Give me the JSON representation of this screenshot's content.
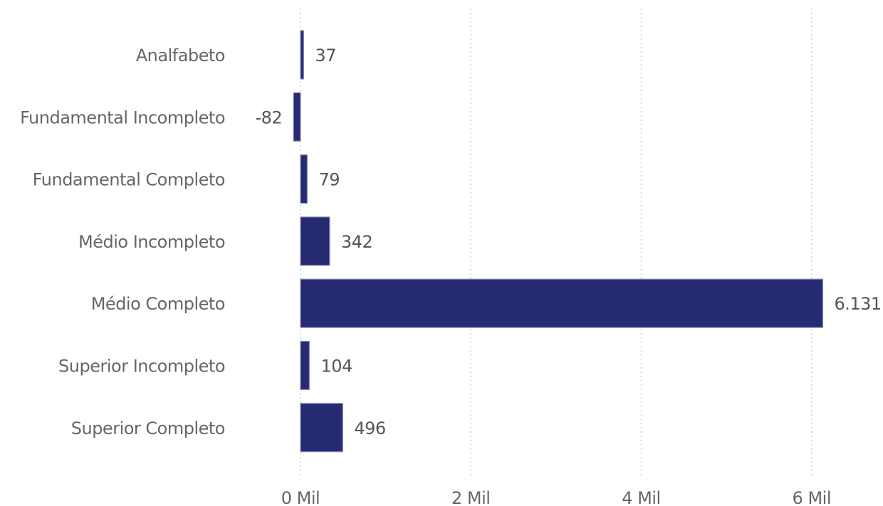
{
  "chart_data": {
    "type": "bar",
    "orientation": "horizontal",
    "categories": [
      "Analfabeto",
      "Fundamental Incompleto",
      "Fundamental Completo",
      "Médio Incompleto",
      "Médio Completo",
      "Superior Incompleto",
      "Superior Completo"
    ],
    "values": [
      37,
      -82,
      79,
      342,
      6131,
      104,
      496
    ],
    "value_labels": [
      "37",
      "-82",
      "79",
      "342",
      "6.131",
      "104",
      "496"
    ],
    "x_ticks": [
      0,
      2000,
      4000,
      6000
    ],
    "x_tick_labels": [
      "0 Mil",
      "2 Mil",
      "4 Mil",
      "6 Mil"
    ],
    "xlim": [
      -100,
      6200
    ],
    "grid": true,
    "bar_color": "#262a71",
    "title": "",
    "xlabel": "",
    "ylabel": ""
  }
}
